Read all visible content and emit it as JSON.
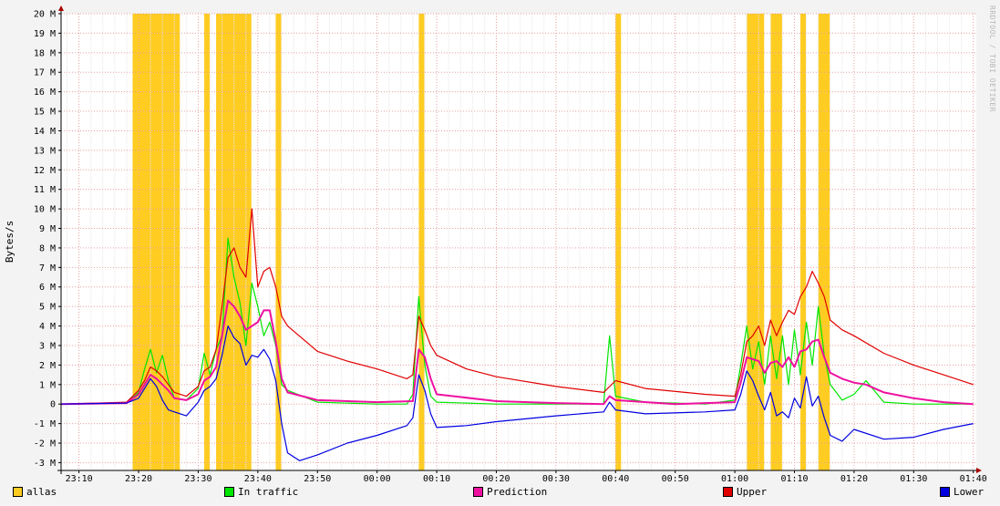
{
  "chart_data": {
    "type": "line",
    "ylabel": "Bytes/s",
    "watermark": "RRDTOOL / TOBI OETIKER",
    "ylim": [
      -3.4,
      20
    ],
    "y_ticks": [
      {
        "v": 20,
        "label": "20 M"
      },
      {
        "v": 19,
        "label": "19 M"
      },
      {
        "v": 18,
        "label": "18 M"
      },
      {
        "v": 17,
        "label": "17 M"
      },
      {
        "v": 16,
        "label": "16 M"
      },
      {
        "v": 15,
        "label": "15 M"
      },
      {
        "v": 14,
        "label": "14 M"
      },
      {
        "v": 13,
        "label": "13 M"
      },
      {
        "v": 12,
        "label": "12 M"
      },
      {
        "v": 11,
        "label": "11 M"
      },
      {
        "v": 10,
        "label": "10 M"
      },
      {
        "v": 9,
        "label": "9 M"
      },
      {
        "v": 8,
        "label": "8 M"
      },
      {
        "v": 7,
        "label": "7 M"
      },
      {
        "v": 6,
        "label": "6 M"
      },
      {
        "v": 5,
        "label": "5 M"
      },
      {
        "v": 4,
        "label": "4 M"
      },
      {
        "v": 3,
        "label": "3 M"
      },
      {
        "v": 2,
        "label": "2 M"
      },
      {
        "v": 1,
        "label": "1 M"
      },
      {
        "v": 0,
        "label": "0"
      },
      {
        "v": -1,
        "label": "-1 M"
      },
      {
        "v": -2,
        "label": "-2 M"
      },
      {
        "v": -3,
        "label": "-3 M"
      }
    ],
    "x_ticks": [
      "23:10",
      "23:20",
      "23:30",
      "23:40",
      "23:50",
      "00:00",
      "00:10",
      "00:20",
      "00:30",
      "00:40",
      "00:50",
      "01:00",
      "01:10",
      "01:20",
      "01:30",
      "01:40"
    ],
    "x_start_label": "23:07",
    "x_end_label": "01:40",
    "series": [
      {
        "name": "allas",
        "color": "#ffcc22",
        "kind": "band",
        "intervals": [
          [
            "23:19",
            "23:26"
          ],
          [
            "23:31",
            "23:31"
          ],
          [
            "23:33",
            "23:38"
          ],
          [
            "23:43",
            "23:43"
          ],
          [
            "00:07",
            "00:07"
          ],
          [
            "00:40",
            "00:40"
          ],
          [
            "01:02",
            "01:04"
          ],
          [
            "01:06",
            "01:07"
          ],
          [
            "01:11",
            "01:11"
          ],
          [
            "01:14",
            "01:15"
          ]
        ]
      },
      {
        "name": "In traffic",
        "color": "#00e600",
        "kind": "line",
        "points": [
          [
            "23:07",
            0
          ],
          [
            "23:18",
            0.05
          ],
          [
            "23:20",
            0.6
          ],
          [
            "23:21",
            1.8
          ],
          [
            "23:22",
            2.8
          ],
          [
            "23:23",
            1.6
          ],
          [
            "23:24",
            2.5
          ],
          [
            "23:25",
            1.2
          ],
          [
            "23:26",
            0.3
          ],
          [
            "23:28",
            0.2
          ],
          [
            "23:30",
            0.8
          ],
          [
            "23:31",
            2.6
          ],
          [
            "23:32",
            1.5
          ],
          [
            "23:33",
            2.8
          ],
          [
            "23:34",
            3.5
          ],
          [
            "23:35",
            8.5
          ],
          [
            "23:36",
            6.5
          ],
          [
            "23:37",
            5.2
          ],
          [
            "23:38",
            3.0
          ],
          [
            "23:39",
            6.2
          ],
          [
            "23:40",
            5.0
          ],
          [
            "23:41",
            3.5
          ],
          [
            "23:42",
            4.2
          ],
          [
            "23:43",
            3.0
          ],
          [
            "23:44",
            1.0
          ],
          [
            "23:45",
            0.7
          ],
          [
            "23:50",
            0.1
          ],
          [
            "00:00",
            0.0
          ],
          [
            "00:05",
            0.0
          ],
          [
            "00:06",
            0.5
          ],
          [
            "00:07",
            5.5
          ],
          [
            "00:08",
            2.0
          ],
          [
            "00:09",
            0.4
          ],
          [
            "00:10",
            0.1
          ],
          [
            "00:20",
            0.0
          ],
          [
            "00:38",
            0.0
          ],
          [
            "00:39",
            3.5
          ],
          [
            "00:40",
            0.4
          ],
          [
            "00:45",
            0.1
          ],
          [
            "00:55",
            0.0
          ],
          [
            "01:00",
            0.2
          ],
          [
            "01:01",
            2.0
          ],
          [
            "01:02",
            4.0
          ],
          [
            "01:03",
            1.8
          ],
          [
            "01:04",
            3.2
          ],
          [
            "01:05",
            1.0
          ],
          [
            "01:06",
            3.5
          ],
          [
            "01:07",
            1.3
          ],
          [
            "01:08",
            3.5
          ],
          [
            "01:09",
            1.0
          ],
          [
            "01:10",
            3.8
          ],
          [
            "01:11",
            1.5
          ],
          [
            "01:12",
            4.2
          ],
          [
            "01:13",
            2.0
          ],
          [
            "01:14",
            5.0
          ],
          [
            "01:15",
            2.5
          ],
          [
            "01:16",
            1.0
          ],
          [
            "01:18",
            0.2
          ],
          [
            "01:20",
            0.5
          ],
          [
            "01:22",
            1.2
          ],
          [
            "01:25",
            0.1
          ],
          [
            "01:30",
            0.0
          ],
          [
            "01:40",
            0.0
          ]
        ]
      },
      {
        "name": "Prediction",
        "color": "#ee10a0",
        "kind": "line",
        "points": [
          [
            "23:07",
            0
          ],
          [
            "23:18",
            0.05
          ],
          [
            "23:20",
            0.5
          ],
          [
            "23:21",
            1.0
          ],
          [
            "23:22",
            1.5
          ],
          [
            "23:23",
            1.3
          ],
          [
            "23:24",
            1.0
          ],
          [
            "23:25",
            0.7
          ],
          [
            "23:26",
            0.3
          ],
          [
            "23:28",
            0.2
          ],
          [
            "23:30",
            0.5
          ],
          [
            "23:31",
            1.2
          ],
          [
            "23:32",
            1.4
          ],
          [
            "23:33",
            1.9
          ],
          [
            "23:34",
            3.5
          ],
          [
            "23:35",
            5.3
          ],
          [
            "23:36",
            5.0
          ],
          [
            "23:37",
            4.5
          ],
          [
            "23:38",
            3.8
          ],
          [
            "23:39",
            4.0
          ],
          [
            "23:40",
            4.2
          ],
          [
            "23:41",
            4.8
          ],
          [
            "23:42",
            4.8
          ],
          [
            "23:43",
            3.2
          ],
          [
            "23:44",
            1.3
          ],
          [
            "23:45",
            0.6
          ],
          [
            "23:50",
            0.2
          ],
          [
            "00:00",
            0.1
          ],
          [
            "00:06",
            0.15
          ],
          [
            "00:07",
            2.8
          ],
          [
            "00:08",
            2.4
          ],
          [
            "00:09",
            1.3
          ],
          [
            "00:10",
            0.5
          ],
          [
            "00:20",
            0.15
          ],
          [
            "00:30",
            0.05
          ],
          [
            "00:38",
            0.0
          ],
          [
            "00:39",
            0.4
          ],
          [
            "00:40",
            0.2
          ],
          [
            "00:50",
            0.0
          ],
          [
            "01:00",
            0.1
          ],
          [
            "01:01",
            1.1
          ],
          [
            "01:02",
            2.4
          ],
          [
            "01:03",
            2.3
          ],
          [
            "01:04",
            2.2
          ],
          [
            "01:05",
            1.6
          ],
          [
            "01:06",
            2.1
          ],
          [
            "01:07",
            2.2
          ],
          [
            "01:08",
            1.9
          ],
          [
            "01:09",
            2.4
          ],
          [
            "01:10",
            1.9
          ],
          [
            "01:11",
            2.7
          ],
          [
            "01:12",
            2.8
          ],
          [
            "01:13",
            3.2
          ],
          [
            "01:14",
            3.3
          ],
          [
            "01:15",
            2.4
          ],
          [
            "01:16",
            1.6
          ],
          [
            "01:18",
            1.3
          ],
          [
            "01:20",
            1.1
          ],
          [
            "01:22",
            1.0
          ],
          [
            "01:25",
            0.6
          ],
          [
            "01:30",
            0.3
          ],
          [
            "01:35",
            0.1
          ],
          [
            "01:40",
            0.0
          ]
        ]
      },
      {
        "name": "Upper",
        "color": "#e00000",
        "kind": "line",
        "points": [
          [
            "23:07",
            0
          ],
          [
            "23:18",
            0.1
          ],
          [
            "23:20",
            0.7
          ],
          [
            "23:21",
            1.2
          ],
          [
            "23:22",
            1.9
          ],
          [
            "23:23",
            1.7
          ],
          [
            "23:24",
            1.4
          ],
          [
            "23:25",
            1.0
          ],
          [
            "23:26",
            0.6
          ],
          [
            "23:28",
            0.4
          ],
          [
            "23:30",
            0.9
          ],
          [
            "23:31",
            1.7
          ],
          [
            "23:32",
            1.9
          ],
          [
            "23:33",
            2.8
          ],
          [
            "23:34",
            5.0
          ],
          [
            "23:35",
            7.5
          ],
          [
            "23:36",
            8.0
          ],
          [
            "23:37",
            7.0
          ],
          [
            "23:38",
            6.5
          ],
          [
            "23:39",
            10.0
          ],
          [
            "23:40",
            6.0
          ],
          [
            "23:41",
            6.8
          ],
          [
            "23:42",
            7.0
          ],
          [
            "23:43",
            6.0
          ],
          [
            "23:44",
            4.5
          ],
          [
            "23:45",
            4.0
          ],
          [
            "23:50",
            2.7
          ],
          [
            "23:55",
            2.2
          ],
          [
            "00:00",
            1.8
          ],
          [
            "00:05",
            1.3
          ],
          [
            "00:06",
            1.5
          ],
          [
            "00:07",
            4.5
          ],
          [
            "00:08",
            3.8
          ],
          [
            "00:09",
            3.0
          ],
          [
            "00:10",
            2.5
          ],
          [
            "00:15",
            1.8
          ],
          [
            "00:20",
            1.4
          ],
          [
            "00:30",
            0.9
          ],
          [
            "00:38",
            0.6
          ],
          [
            "00:40",
            1.2
          ],
          [
            "00:45",
            0.8
          ],
          [
            "00:55",
            0.5
          ],
          [
            "01:00",
            0.4
          ],
          [
            "01:01",
            1.5
          ],
          [
            "01:02",
            3.2
          ],
          [
            "01:03",
            3.5
          ],
          [
            "01:04",
            4.0
          ],
          [
            "01:05",
            3.0
          ],
          [
            "01:06",
            4.3
          ],
          [
            "01:07",
            3.5
          ],
          [
            "01:08",
            4.2
          ],
          [
            "01:09",
            4.8
          ],
          [
            "01:10",
            4.6
          ],
          [
            "01:11",
            5.5
          ],
          [
            "01:12",
            6.0
          ],
          [
            "01:13",
            6.8
          ],
          [
            "01:14",
            6.2
          ],
          [
            "01:15",
            5.5
          ],
          [
            "01:16",
            4.3
          ],
          [
            "01:18",
            3.8
          ],
          [
            "01:20",
            3.5
          ],
          [
            "01:25",
            2.6
          ],
          [
            "01:30",
            2.0
          ],
          [
            "01:35",
            1.5
          ],
          [
            "01:40",
            1.0
          ]
        ]
      },
      {
        "name": "Lower",
        "color": "#0000e0",
        "kind": "line",
        "points": [
          [
            "23:07",
            0
          ],
          [
            "23:18",
            0.05
          ],
          [
            "23:20",
            0.3
          ],
          [
            "23:21",
            0.8
          ],
          [
            "23:22",
            1.3
          ],
          [
            "23:23",
            0.9
          ],
          [
            "23:24",
            0.2
          ],
          [
            "23:25",
            -0.3
          ],
          [
            "23:26",
            -0.4
          ],
          [
            "23:28",
            -0.6
          ],
          [
            "23:30",
            0.1
          ],
          [
            "23:31",
            0.7
          ],
          [
            "23:32",
            0.9
          ],
          [
            "23:33",
            1.3
          ],
          [
            "23:34",
            2.5
          ],
          [
            "23:35",
            4.0
          ],
          [
            "23:36",
            3.4
          ],
          [
            "23:37",
            3.1
          ],
          [
            "23:38",
            2.0
          ],
          [
            "23:39",
            2.5
          ],
          [
            "23:40",
            2.4
          ],
          [
            "23:41",
            2.8
          ],
          [
            "23:42",
            2.3
          ],
          [
            "23:43",
            1.2
          ],
          [
            "23:44",
            -1.0
          ],
          [
            "23:45",
            -2.5
          ],
          [
            "23:47",
            -2.9
          ],
          [
            "23:50",
            -2.6
          ],
          [
            "23:55",
            -2.0
          ],
          [
            "00:00",
            -1.6
          ],
          [
            "00:05",
            -1.1
          ],
          [
            "00:06",
            -0.7
          ],
          [
            "00:07",
            1.5
          ],
          [
            "00:08",
            0.7
          ],
          [
            "00:09",
            -0.5
          ],
          [
            "00:10",
            -1.2
          ],
          [
            "00:15",
            -1.1
          ],
          [
            "00:20",
            -0.9
          ],
          [
            "00:30",
            -0.6
          ],
          [
            "00:38",
            -0.4
          ],
          [
            "00:39",
            0.1
          ],
          [
            "00:40",
            -0.3
          ],
          [
            "00:45",
            -0.5
          ],
          [
            "00:55",
            -0.4
          ],
          [
            "01:00",
            -0.3
          ],
          [
            "01:01",
            0.5
          ],
          [
            "01:02",
            1.7
          ],
          [
            "01:03",
            1.2
          ],
          [
            "01:04",
            0.4
          ],
          [
            "01:05",
            -0.3
          ],
          [
            "01:06",
            0.6
          ],
          [
            "01:07",
            -0.6
          ],
          [
            "01:08",
            -0.4
          ],
          [
            "01:09",
            -0.7
          ],
          [
            "01:10",
            0.3
          ],
          [
            "01:11",
            -0.2
          ],
          [
            "01:12",
            1.4
          ],
          [
            "01:13",
            -0.1
          ],
          [
            "01:14",
            0.4
          ],
          [
            "01:15",
            -0.7
          ],
          [
            "01:16",
            -1.6
          ],
          [
            "01:18",
            -1.9
          ],
          [
            "01:20",
            -1.3
          ],
          [
            "01:25",
            -1.8
          ],
          [
            "01:30",
            -1.7
          ],
          [
            "01:35",
            -1.3
          ],
          [
            "01:40",
            -1.0
          ]
        ]
      }
    ],
    "grid": true,
    "legend_position": "bottom"
  }
}
